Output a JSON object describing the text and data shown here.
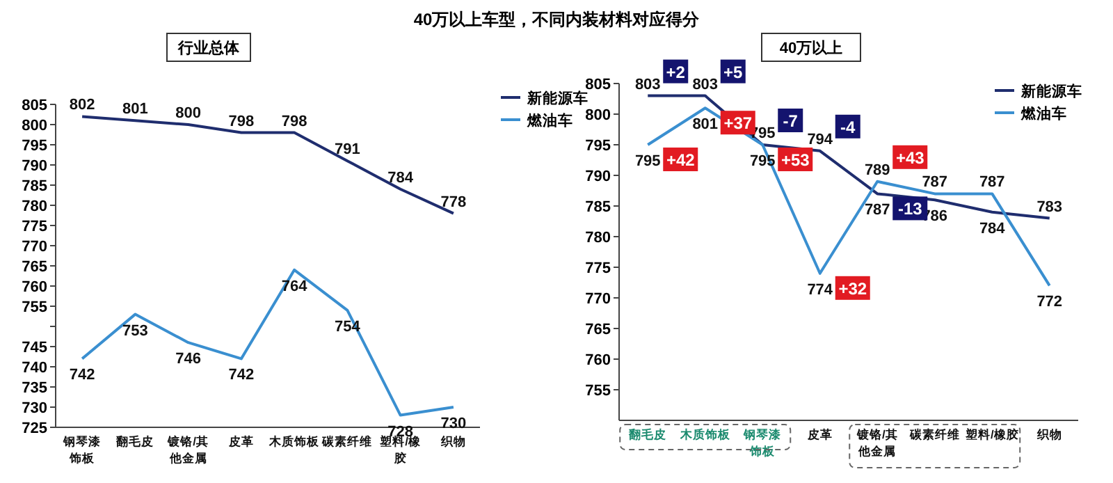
{
  "chart_data": [
    {
      "type": "line",
      "title": "40万以上车型，不同内装材料对应得分",
      "subtitle": "行业总体",
      "categories": [
        "钢琴漆饰板",
        "翻毛皮",
        "镀铬/其他金属",
        "皮革",
        "木质饰板",
        "碳素纤维",
        "塑料/橡胶",
        "织物"
      ],
      "series": [
        {
          "name": "新能源车",
          "color": "#1f2d6e",
          "values": [
            802,
            801,
            800,
            798,
            798,
            791,
            784,
            778
          ]
        },
        {
          "name": "燃油车",
          "color": "#3a8fd0",
          "values": [
            742,
            753,
            746,
            742,
            764,
            754,
            728,
            730
          ]
        }
      ],
      "ylim": [
        725,
        805
      ],
      "yticks": [
        805,
        800,
        795,
        790,
        785,
        780,
        775,
        770,
        765,
        760,
        755,
        {
          "value": 750,
          "label": null
        },
        745,
        740,
        735,
        730,
        725
      ],
      "data_labels": true,
      "legend": "right"
    },
    {
      "type": "line",
      "subtitle": "40万以上",
      "categories": [
        "翻毛皮",
        "木质饰板",
        "钢琴漆饰板",
        "皮革",
        "镀铬/其他金属",
        "碳素纤维",
        "塑料/橡胶",
        "织物"
      ],
      "series": [
        {
          "name": "新能源车",
          "color": "#1f2d6e",
          "values": [
            803,
            803,
            795,
            794,
            787,
            786,
            784,
            783
          ]
        },
        {
          "name": "燃油车",
          "color": "#3a8fd0",
          "values": [
            795,
            801,
            795,
            774,
            789,
            787,
            787,
            772
          ]
        }
      ],
      "ylim": [
        750,
        805
      ],
      "yticks": [
        805,
        800,
        795,
        790,
        785,
        780,
        775,
        770,
        765,
        760,
        755
      ],
      "data_labels": true,
      "legend": "top right",
      "annotations": [
        {
          "text": "+2",
          "x": "翻毛皮",
          "y": 803
        },
        {
          "text": "+42",
          "x": "翻毛皮",
          "y": 795
        },
        {
          "text": "+5",
          "x": "木质饰板",
          "y": 803
        },
        {
          "text": "+37",
          "x": "木质饰板",
          "y": 801
        },
        {
          "text": "-7",
          "x": "钢琴漆饰板",
          "y": 795
        },
        {
          "text": "+53",
          "x": "钢琴漆饰板",
          "y": 795
        },
        {
          "text": "-4",
          "x": "皮革",
          "y": 794
        },
        {
          "text": "+32",
          "x": "皮革",
          "y": 774
        },
        {
          "text": "+43",
          "x": "镀铬/其他金属",
          "y": 789
        },
        {
          "text": "-13",
          "x": "镀铬/其他金属",
          "y": 787
        }
      ]
    }
  ]
}
